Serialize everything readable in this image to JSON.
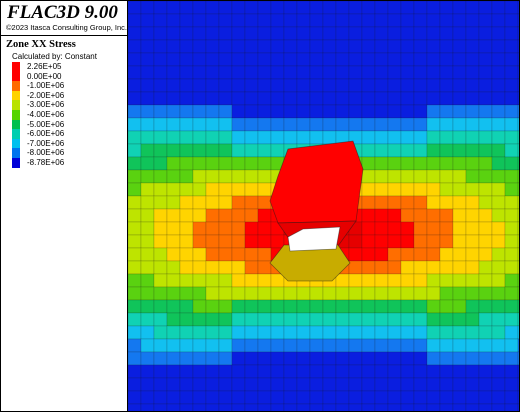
{
  "app": {
    "title": "FLAC3D 9.00",
    "copyright": "©2023 Itasca Consulting Group, Inc."
  },
  "legend": {
    "title": "Zone XX Stress",
    "subtitle": "Calculated by: Constant",
    "entries": [
      {
        "label": "2.26E+05",
        "color": "#ff0000"
      },
      {
        "label": "0.00E+00",
        "color": "#ff0000"
      },
      {
        "label": "-1.00E+06",
        "color": "#ff6a00"
      },
      {
        "label": "-2.00E+06",
        "color": "#ffd200"
      },
      {
        "label": "-3.00E+06",
        "color": "#b9e200"
      },
      {
        "label": "-4.00E+06",
        "color": "#55d400"
      },
      {
        "label": "-5.00E+06",
        "color": "#00c050"
      },
      {
        "label": "-6.00E+06",
        "color": "#00ceb0"
      },
      {
        "label": "-7.00E+06",
        "color": "#00c0ee"
      },
      {
        "label": "-8.00E+06",
        "color": "#0074ee"
      },
      {
        "label": "-8.78E+06",
        "color": "#0000d8"
      }
    ]
  },
  "model": {
    "colors": {
      "level_0": "#0a1ee0",
      "level_1": "#1478f0",
      "level_2": "#12c0f0",
      "level_3": "#10d2b4",
      "level_4": "#10c45a",
      "level_5": "#5ad210",
      "level_6": "#bee400",
      "level_7": "#ffd400",
      "level_8": "#ff6e00",
      "level_9": "#ff0000",
      "level_10": "#e60000",
      "opening": "#ffffff",
      "drift_floor": "#c8ac00",
      "mesh_line": "#1a1a1a"
    }
  }
}
